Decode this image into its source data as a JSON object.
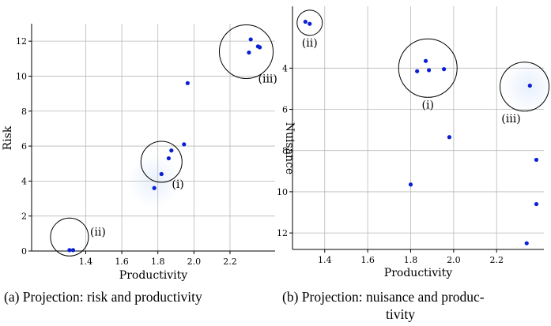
{
  "figure": {
    "caption_a": "(a) Projection: risk and productivity",
    "caption_b_line1": "(b) Projection: nuisance and produc-",
    "caption_b_line2": "tivity"
  },
  "colors": {
    "point": "#0a1fd6",
    "circle": "#000000",
    "grid": "#b8b8b8",
    "halo": "#e8f0fc"
  },
  "chart_data": [
    {
      "type": "scatter",
      "title": "",
      "xlabel": "Productivity",
      "ylabel": "Risk",
      "xlim": [
        1.1,
        2.45
      ],
      "ylim": [
        0,
        13
      ],
      "y_inverted": false,
      "grid": true,
      "xticks": [
        1.4,
        1.6,
        1.8,
        2.0,
        2.2
      ],
      "yticks": [
        0,
        2,
        4,
        6,
        8,
        10,
        12
      ],
      "xtick_labels": [
        "1.4",
        "1.6",
        "1.8",
        "2.0",
        "2.2"
      ],
      "ytick_labels": [
        "0",
        "2",
        "4",
        "6",
        "8",
        "10",
        "12"
      ],
      "points": [
        {
          "x": 1.31,
          "y": 0.05
        },
        {
          "x": 1.33,
          "y": 0.05
        },
        {
          "x": 1.78,
          "y": 3.6
        },
        {
          "x": 1.82,
          "y": 4.4
        },
        {
          "x": 1.86,
          "y": 5.3
        },
        {
          "x": 1.875,
          "y": 5.75
        },
        {
          "x": 1.945,
          "y": 6.1
        },
        {
          "x": 1.965,
          "y": 9.6
        },
        {
          "x": 2.305,
          "y": 11.35
        },
        {
          "x": 2.315,
          "y": 12.1
        },
        {
          "x": 2.355,
          "y": 11.7
        },
        {
          "x": 2.365,
          "y": 11.65
        }
      ],
      "clusters": [
        {
          "label": "(i)",
          "cx": 1.82,
          "cy": 5.1,
          "r_px": 26,
          "label_pos": "below-right"
        },
        {
          "label": "(ii)",
          "cx": 1.31,
          "cy": 0.8,
          "r_px": 24,
          "label_pos": "right"
        },
        {
          "label": "(iii)",
          "cx": 2.29,
          "cy": 11.4,
          "r_px": 34,
          "label_pos": "below-right"
        }
      ],
      "halos": [
        {
          "cx": 1.78,
          "cy": 4.0
        }
      ]
    },
    {
      "type": "scatter",
      "title": "",
      "xlabel": "Productivity",
      "ylabel": "Nuisance",
      "xlim": [
        1.25,
        2.42
      ],
      "ylim": [
        1.0,
        12.8
      ],
      "y_inverted": true,
      "grid": true,
      "xticks": [
        1.4,
        1.6,
        1.8,
        2.0,
        2.2
      ],
      "yticks": [
        4,
        6,
        8,
        10,
        12
      ],
      "xtick_labels": [
        "1.4",
        "1.6",
        "1.8",
        "2.0",
        "2.2"
      ],
      "ytick_labels": [
        "4",
        "6",
        "8",
        "10",
        "12"
      ],
      "points": [
        {
          "x": 1.31,
          "y": 1.75
        },
        {
          "x": 1.33,
          "y": 1.85
        },
        {
          "x": 1.83,
          "y": 4.15
        },
        {
          "x": 1.87,
          "y": 3.65
        },
        {
          "x": 1.885,
          "y": 4.1
        },
        {
          "x": 1.955,
          "y": 4.05
        },
        {
          "x": 1.98,
          "y": 7.35
        },
        {
          "x": 1.8,
          "y": 9.65
        },
        {
          "x": 2.355,
          "y": 4.85
        },
        {
          "x": 2.385,
          "y": 8.45
        },
        {
          "x": 2.385,
          "y": 10.6
        },
        {
          "x": 2.34,
          "y": 12.5
        }
      ],
      "clusters": [
        {
          "label": "(i)",
          "cx": 1.88,
          "cy": 4.0,
          "r_px": 37,
          "label_pos": "below"
        },
        {
          "label": "(ii)",
          "cx": 1.33,
          "cy": 1.8,
          "r_px": 16,
          "label_pos": "below"
        },
        {
          "label": "(iii)",
          "cx": 2.33,
          "cy": 4.9,
          "r_px": 31,
          "label_pos": "below-left"
        }
      ],
      "halos": [
        {
          "cx": 2.35,
          "cy": 4.9
        }
      ]
    }
  ]
}
